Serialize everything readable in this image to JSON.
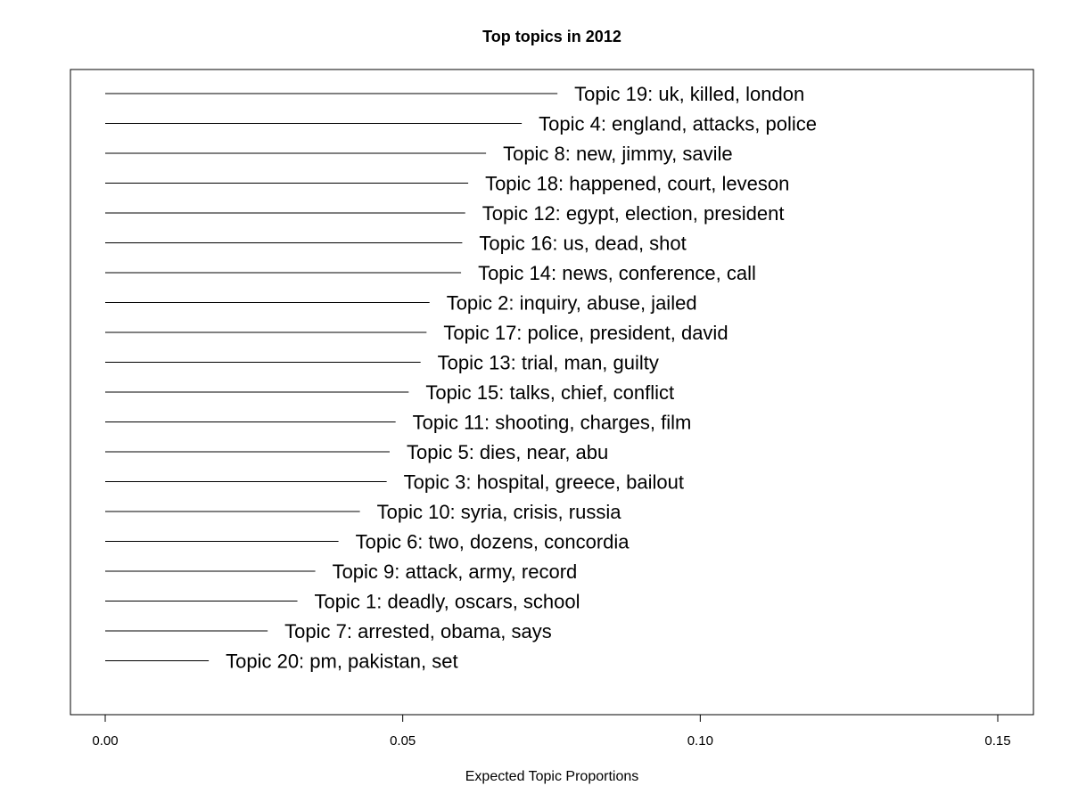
{
  "chart_data": {
    "type": "bar",
    "orientation": "horizontal",
    "title": "Top topics in 2012",
    "xlabel": "Expected Topic Proportions",
    "ylabel": "",
    "xlim": [
      0.0,
      0.15
    ],
    "xticks": [
      0.0,
      0.05,
      0.1,
      0.15
    ],
    "xtick_labels": [
      "0.00",
      "0.05",
      "0.10",
      "0.15"
    ],
    "grid": false,
    "categories": [
      "Topic 19: uk, killed, london",
      "Topic 4: england, attacks, police",
      "Topic 8: new, jimmy, savile",
      "Topic 18: happened, court, leveson",
      "Topic 12: egypt, election, president",
      "Topic 16: us, dead, shot",
      "Topic 14: news, conference, call",
      "Topic 2: inquiry, abuse, jailed",
      "Topic 17: police, president, david",
      "Topic 13: trial, man, guilty",
      "Topic 15: talks, chief, conflict",
      "Topic 11: shooting, charges, film",
      "Topic 5: dies, near, abu",
      "Topic 3: hospital, greece, bailout",
      "Topic 10: syria, crisis, russia",
      "Topic 6: two, dozens, concordia",
      "Topic 9: attack, army, record",
      "Topic 1: deadly, oscars, school",
      "Topic 7: arrested, obama, says",
      "Topic 20: pm, pakistan, set"
    ],
    "values": [
      0.076,
      0.07,
      0.064,
      0.061,
      0.0605,
      0.06,
      0.0598,
      0.0545,
      0.054,
      0.053,
      0.051,
      0.0488,
      0.0478,
      0.0473,
      0.0428,
      0.0392,
      0.0353,
      0.0323,
      0.0273,
      0.0174
    ]
  }
}
